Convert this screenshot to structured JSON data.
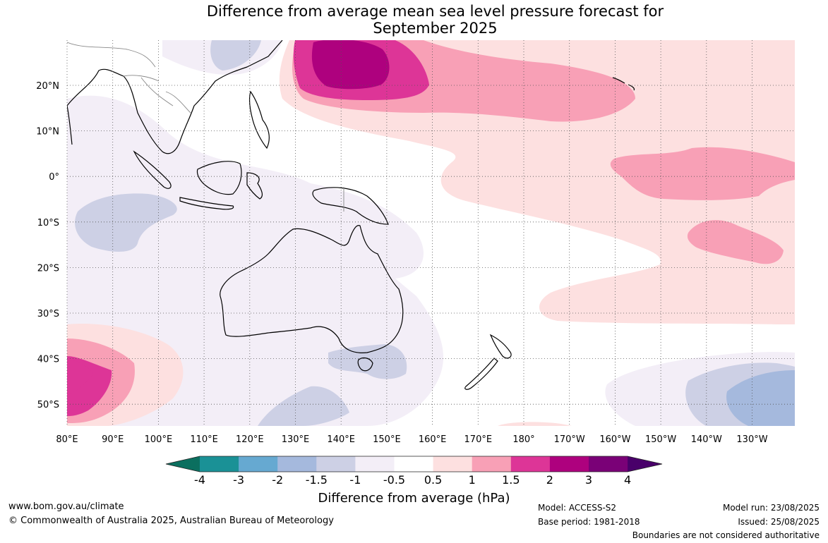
{
  "title_line1": "Difference from average mean sea level pressure forecast for",
  "title_line2": "September 2025",
  "lat_labels": [
    "20°N",
    "10°N",
    "0°",
    "10°S",
    "20°S",
    "30°S",
    "40°S",
    "50°S"
  ],
  "lon_labels": [
    "80°E",
    "90°E",
    "100°E",
    "110°E",
    "120°E",
    "130°E",
    "140°E",
    "150°E",
    "160°E",
    "170°E",
    "180°",
    "170°W",
    "160°W",
    "150°W",
    "140°W",
    "130°W"
  ],
  "colorbar": {
    "title": "Difference from average (hPa)",
    "ticks": [
      "-4",
      "-3",
      "-2",
      "-1.5",
      "-1",
      "-0.5",
      "0.5",
      "1",
      "1.5",
      "2",
      "3",
      "4"
    ],
    "colors": {
      "lt_-4": "#0b6f5f",
      "-4_-3": "#1a9196",
      "-3_-2": "#66a9d1",
      "-2_-1.5": "#a5b9dd",
      "-1.5_-1": "#cdd0e5",
      "-1_-0.5": "#f3eef7",
      "-0.5_0.5": "#ffffff",
      "0.5_1": "#fde0e0",
      "1_1.5": "#f8a0b6",
      "1.5_2": "#dd3597",
      "2_3": "#ae017e",
      "3_4": "#7a0177",
      "gt_4": "#49006a"
    }
  },
  "footer": {
    "site": "www.bom.gov.au/climate",
    "copyright": "© Commonwealth of Australia 2025, Australian Bureau of Meteorology",
    "model": "Model: ACCESS-S2",
    "base_period": "Base period: 1981-2018",
    "model_run": "Model run: 23/08/2025",
    "issued": "Issued: 25/08/2025",
    "disclaimer": "Boundaries are not considered authoritative"
  }
}
